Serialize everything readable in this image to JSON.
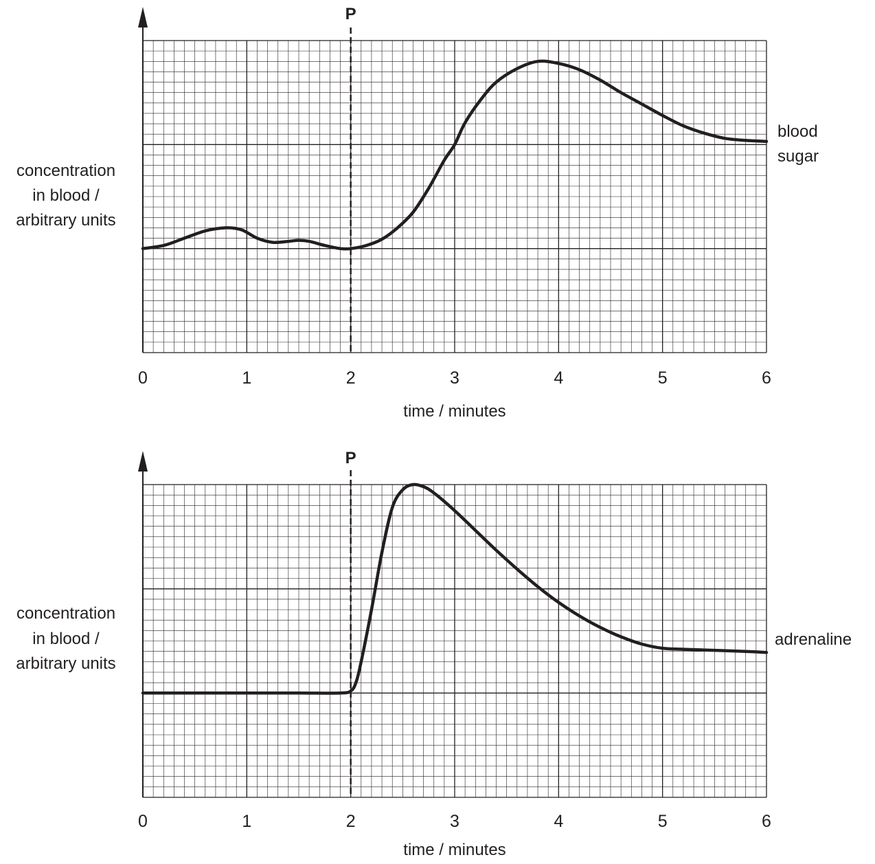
{
  "chart_data": [
    {
      "type": "line",
      "title": "",
      "xlabel": "time / minutes",
      "ylabel": [
        "concentration",
        "in blood /",
        "arbitrary units"
      ],
      "xlim": [
        0,
        6
      ],
      "ylim": [
        0,
        3
      ],
      "x_ticks": [
        "0",
        "1",
        "2",
        "3",
        "4",
        "5",
        "6"
      ],
      "grid": true,
      "marker_line": {
        "label": "P",
        "x": 2
      },
      "series": [
        {
          "name": [
            "blood",
            "sugar"
          ],
          "x": [
            0,
            0.2,
            0.4,
            0.6,
            0.8,
            0.95,
            1.1,
            1.25,
            1.4,
            1.5,
            1.6,
            1.75,
            1.9,
            2.0,
            2.15,
            2.3,
            2.45,
            2.6,
            2.75,
            2.9,
            3.0,
            3.1,
            3.25,
            3.4,
            3.6,
            3.8,
            4.0,
            4.2,
            4.4,
            4.6,
            4.8,
            5.0,
            5.2,
            5.4,
            5.6,
            5.8,
            6.0
          ],
          "values": [
            1.0,
            1.03,
            1.1,
            1.17,
            1.2,
            1.18,
            1.1,
            1.06,
            1.07,
            1.08,
            1.07,
            1.03,
            1.0,
            1.0,
            1.03,
            1.09,
            1.2,
            1.35,
            1.58,
            1.85,
            2.0,
            2.21,
            2.43,
            2.6,
            2.73,
            2.8,
            2.78,
            2.72,
            2.62,
            2.5,
            2.39,
            2.28,
            2.18,
            2.11,
            2.06,
            2.04,
            2.03
          ]
        },
        {
          "name": "adrenaline",
          "x": [
            0,
            0.5,
            1.0,
            1.5,
            1.9,
            2.0,
            2.05,
            2.1,
            2.2,
            2.3,
            2.4,
            2.5,
            2.6,
            2.7,
            2.8,
            3.0,
            3.2,
            3.4,
            3.6,
            3.8,
            4.0,
            4.2,
            4.4,
            4.6,
            4.8,
            5.0,
            5.2,
            5.5,
            5.8,
            6.0
          ],
          "values": [
            1.0,
            1.0,
            1.0,
            1.0,
            1.0,
            1.02,
            1.1,
            1.3,
            1.8,
            2.35,
            2.78,
            2.95,
            3.0,
            2.98,
            2.92,
            2.75,
            2.56,
            2.37,
            2.19,
            2.02,
            1.87,
            1.74,
            1.63,
            1.54,
            1.47,
            1.43,
            1.42,
            1.41,
            1.4,
            1.39
          ]
        }
      ]
    }
  ]
}
